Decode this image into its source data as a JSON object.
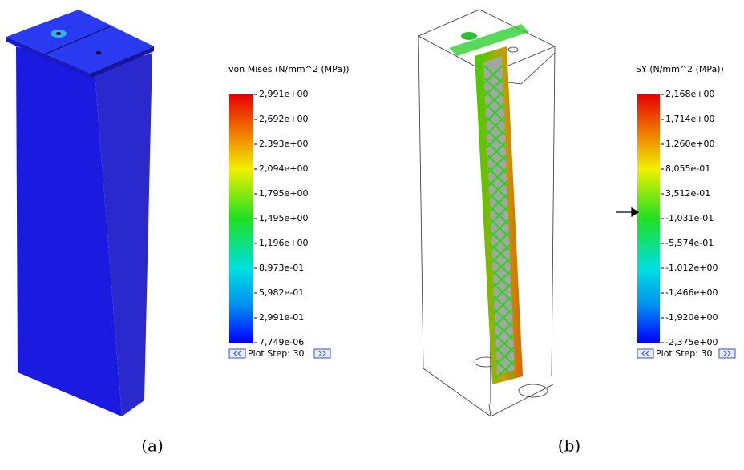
{
  "panels": [
    {
      "legend_title": "von Mises (N/mm^2 (MPa))",
      "tick_labels": [
        "2,991e+00",
        "2,692e+00",
        "2,393e+00",
        "2,094e+00",
        "1,795e+00",
        "1,495e+00",
        "1,196e+00",
        "8,973e-01",
        "5,982e-01",
        "2,991e-01",
        "7,749e-06"
      ],
      "plot_step": "Plot Step: 30",
      "caption": "(a)"
    },
    {
      "legend_title": "SY (N/mm^2 (MPa))",
      "tick_labels": [
        "2,168e+00",
        "1,714e+00",
        "1,260e+00",
        "8,055e-01",
        "3,512e-01",
        "-1,031e-01",
        "-5,574e-01",
        "-1,012e+00",
        "-1,466e+00",
        "-1,920e+00",
        "-2,375e+00"
      ],
      "plot_step": "Plot Step: 30",
      "caption": "(b)"
    }
  ]
}
